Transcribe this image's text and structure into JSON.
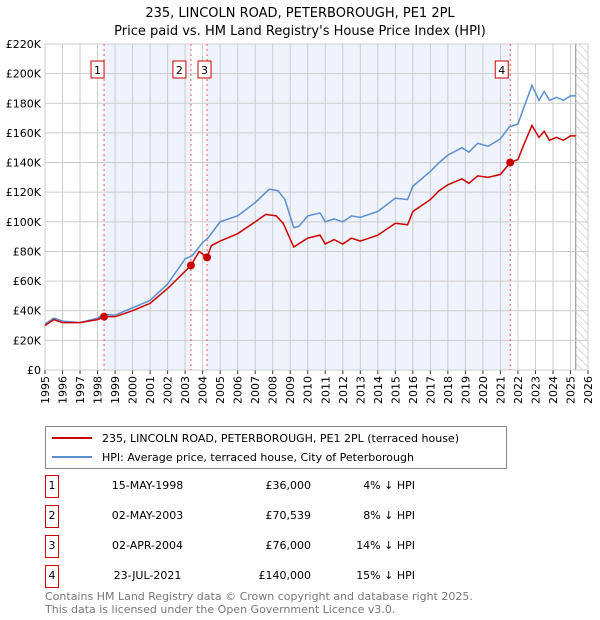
{
  "title": "235, LINCOLN ROAD, PETERBOROUGH, PE1 2PL",
  "subtitle": "Price paid vs. HM Land Registry's House Price Index (HPI)",
  "chart_data": {
    "type": "line",
    "title": "235, LINCOLN ROAD, PETERBOROUGH, PE1 2PL",
    "subtitle": "Price paid vs. HM Land Registry's House Price Index (HPI)",
    "xlim": [
      1995,
      2026
    ],
    "ylim": [
      0,
      220000
    ],
    "x_ticks": [
      "1995",
      "1996",
      "1997",
      "1998",
      "1999",
      "2000",
      "2001",
      "2002",
      "2003",
      "2004",
      "2005",
      "2006",
      "2007",
      "2008",
      "2009",
      "2010",
      "2011",
      "2012",
      "2013",
      "2014",
      "2015",
      "2016",
      "2017",
      "2018",
      "2019",
      "2020",
      "2021",
      "2022",
      "2023",
      "2024",
      "2025",
      "2026"
    ],
    "y_ticks": [
      {
        "v": 0,
        "label": "£0"
      },
      {
        "v": 20000,
        "label": "£20K"
      },
      {
        "v": 40000,
        "label": "£40K"
      },
      {
        "v": 60000,
        "label": "£60K"
      },
      {
        "v": 80000,
        "label": "£80K"
      },
      {
        "v": 100000,
        "label": "£100K"
      },
      {
        "v": 120000,
        "label": "£120K"
      },
      {
        "v": 140000,
        "label": "£140K"
      },
      {
        "v": 160000,
        "label": "£160K"
      },
      {
        "v": 180000,
        "label": "£180K"
      },
      {
        "v": 200000,
        "label": "£200K"
      },
      {
        "v": 220000,
        "label": "£220K"
      }
    ],
    "grid": true,
    "data_end": 2025.3,
    "series": [
      {
        "name": "235, LINCOLN ROAD, PETERBOROUGH, PE1 2PL (terraced house)",
        "color": "#cc0000",
        "x": [
          1995,
          1995.5,
          1996,
          1997,
          1998,
          1998.37,
          1999,
          2000,
          2001,
          2002,
          2003.33,
          2003.8,
          2004.25,
          2004.5,
          2005,
          2006,
          2007,
          2007.6,
          2008.2,
          2008.6,
          2009.2,
          2010,
          2010.7,
          2011,
          2011.5,
          2012,
          2012.5,
          2013,
          2014,
          2015,
          2015.7,
          2016,
          2017,
          2017.5,
          2018,
          2018.8,
          2019.2,
          2019.7,
          2020.3,
          2021,
          2021.56,
          2022,
          2022.3,
          2022.8,
          2023.2,
          2023.5,
          2023.8,
          2024.2,
          2024.6,
          2025,
          2025.3
        ],
        "y": [
          30000,
          34000,
          32000,
          32000,
          34000,
          36000,
          36000,
          40000,
          45000,
          55000,
          70539,
          80000,
          76000,
          84000,
          87000,
          92000,
          100000,
          105000,
          104000,
          99000,
          83000,
          89000,
          91000,
          85000,
          88000,
          85000,
          89000,
          87000,
          91000,
          99000,
          98000,
          107000,
          115000,
          121000,
          125000,
          129000,
          126000,
          131000,
          130000,
          132000,
          140000,
          142000,
          151000,
          165000,
          157000,
          161000,
          155000,
          157000,
          155000,
          158000,
          158000
        ]
      },
      {
        "name": "HPI: Average price, terraced house, City of Peterborough",
        "color": "#5b8fd0",
        "x": [
          1995,
          1995.5,
          1996,
          1997,
          1998,
          1998.4,
          1999,
          2000,
          2001,
          2002,
          2003,
          2003.4,
          2004,
          2004.3,
          2005,
          2006,
          2007,
          2007.8,
          2008.3,
          2008.7,
          2009.2,
          2009.5,
          2010,
          2010.7,
          2011,
          2011.5,
          2012,
          2012.5,
          2013,
          2014,
          2015,
          2015.7,
          2016,
          2017,
          2017.5,
          2018,
          2018.8,
          2019.2,
          2019.7,
          2020.3,
          2021,
          2021.5,
          2022,
          2022.3,
          2022.8,
          2023.2,
          2023.5,
          2023.8,
          2024.2,
          2024.6,
          2025,
          2025.3
        ],
        "y": [
          31000,
          35000,
          33000,
          32000,
          35000,
          37500,
          37000,
          42000,
          47000,
          58000,
          75000,
          77000,
          86000,
          89000,
          100000,
          104000,
          113000,
          122000,
          121000,
          115000,
          96000,
          97000,
          104000,
          106000,
          100000,
          102000,
          100000,
          104000,
          103000,
          107000,
          116000,
          115000,
          124000,
          134000,
          140000,
          145000,
          150000,
          147000,
          153000,
          151000,
          156000,
          164000,
          166000,
          176000,
          192000,
          182000,
          188000,
          182000,
          184000,
          182000,
          185000,
          185000
        ]
      }
    ],
    "sales": [
      {
        "n": "1",
        "x": 1998.37,
        "y": 36000
      },
      {
        "n": "2",
        "x": 2003.33,
        "y": 70539
      },
      {
        "n": "3",
        "x": 2004.25,
        "y": 76000
      },
      {
        "n": "4",
        "x": 2021.56,
        "y": 140000
      }
    ],
    "legend_position": "bottom"
  },
  "legend": [
    {
      "label": "235, LINCOLN ROAD, PETERBOROUGH, PE1 2PL (terraced house)",
      "color": "#cc0000"
    },
    {
      "label": "HPI: Average price, terraced house, City of Peterborough",
      "color": "#5b8fd0"
    }
  ],
  "transactions": [
    {
      "n": "1",
      "date": "15-MAY-1998",
      "price": "£36,000",
      "hpi": "4% ↓ HPI"
    },
    {
      "n": "2",
      "date": "02-MAY-2003",
      "price": "£70,539",
      "hpi": "8% ↓ HPI"
    },
    {
      "n": "3",
      "date": "02-APR-2004",
      "price": "£76,000",
      "hpi": "14% ↓ HPI"
    },
    {
      "n": "4",
      "date": "23-JUL-2021",
      "price": "£140,000",
      "hpi": "15% ↓ HPI"
    }
  ],
  "footer": {
    "line1": "Contains HM Land Registry data © Crown copyright and database right 2025.",
    "line2": "This data is licensed under the Open Government Licence v3.0."
  }
}
